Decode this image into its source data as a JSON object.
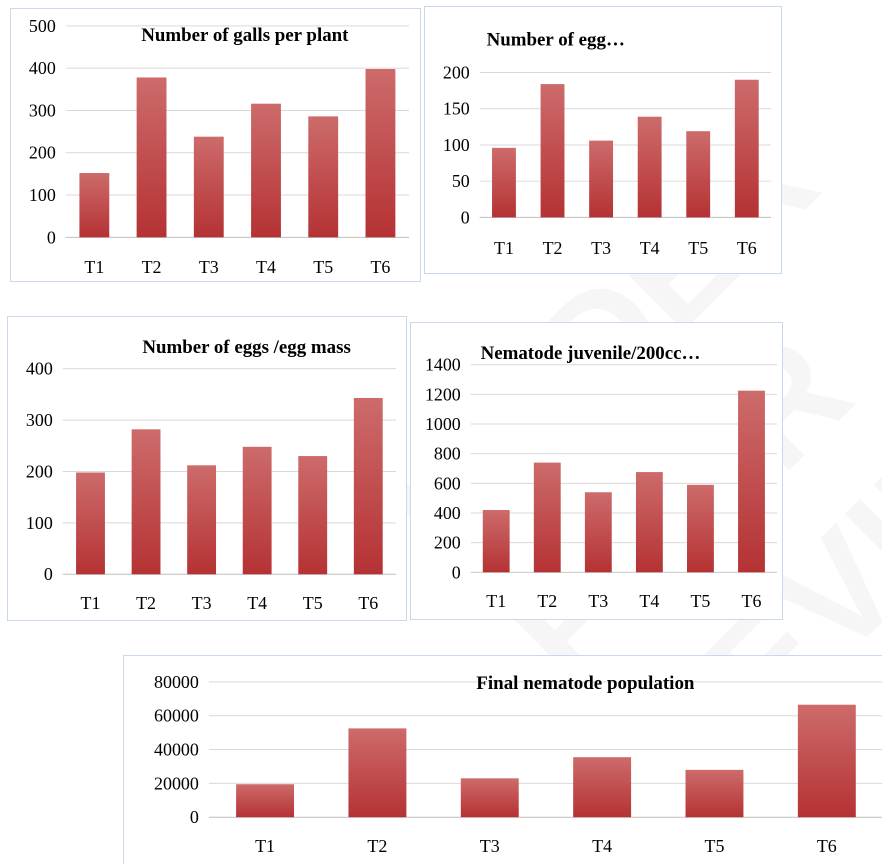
{
  "theme": {
    "bar_top": "#cd6b6b",
    "bar_bottom": "#b53234",
    "border": "#c9d9ec"
  },
  "watermark": "UNDER PEER REVIEW",
  "chart_data": [
    {
      "type": "bar",
      "title": "Number of galls per plant",
      "categories": [
        "T1",
        "T2",
        "T3",
        "T4",
        "T5",
        "T6"
      ],
      "values": [
        152,
        378,
        238,
        316,
        286,
        398
      ],
      "ylim": [
        0,
        500
      ],
      "yticks": [
        "0",
        "100",
        "200",
        "300",
        "400",
        "500"
      ],
      "grid": true
    },
    {
      "type": "bar",
      "title": "Number of egg…",
      "categories": [
        "T1",
        "T2",
        "T3",
        "T4",
        "T5",
        "T6"
      ],
      "values": [
        96,
        184,
        106,
        139,
        119,
        190
      ],
      "ylim": [
        0,
        200
      ],
      "yticks": [
        "0",
        "50",
        "100",
        "150",
        "200"
      ],
      "grid": true
    },
    {
      "type": "bar",
      "title": "Number of eggs /egg mass",
      "categories": [
        "T1",
        "T2",
        "T3",
        "T4",
        "T5",
        "T6"
      ],
      "values": [
        198,
        282,
        212,
        248,
        230,
        343
      ],
      "ylim": [
        0,
        400
      ],
      "yticks": [
        "0",
        "100",
        "200",
        "300",
        "400"
      ],
      "grid": true
    },
    {
      "type": "bar",
      "title": "Nematode juvenile/200cc…",
      "categories": [
        "T1",
        "T2",
        "T3",
        "T4",
        "T5",
        "T6"
      ],
      "values": [
        420,
        740,
        540,
        676,
        590,
        1225
      ],
      "ylim": [
        0,
        1400
      ],
      "yticks": [
        "0",
        "200",
        "400",
        "600",
        "800",
        "1000",
        "1200",
        "1400"
      ],
      "grid": true
    },
    {
      "type": "bar",
      "title": "Final nematode population",
      "categories": [
        "T1",
        "T2",
        "T3",
        "T4",
        "T5",
        "T6"
      ],
      "values": [
        19500,
        52500,
        23000,
        35500,
        28000,
        66500
      ],
      "ylim": [
        0,
        80000
      ],
      "yticks": [
        "0",
        "20000",
        "40000",
        "60000",
        "80000"
      ],
      "grid": true
    }
  ]
}
